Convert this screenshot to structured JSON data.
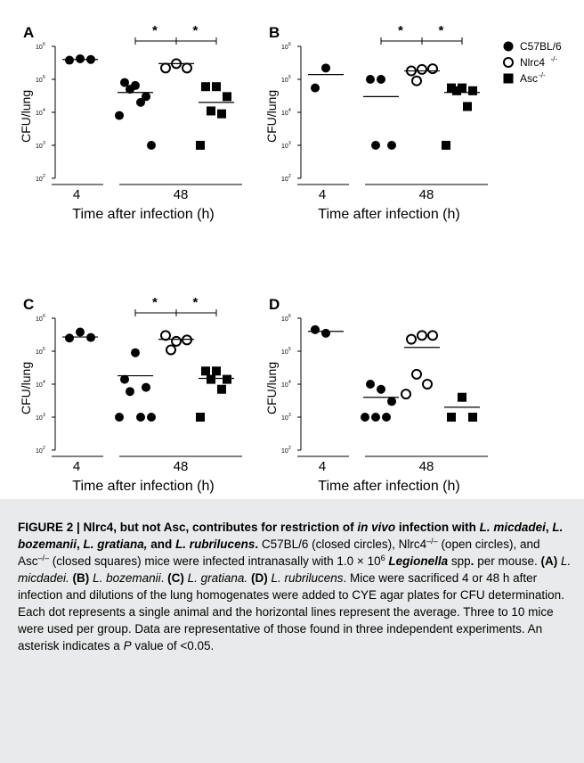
{
  "chart_data": [
    {
      "type": "scatter",
      "panel": "A",
      "ylabel": "CFU/lung",
      "xlabel": "Time after infection (h)",
      "yscale": "log",
      "ylim": [
        100,
        1000000
      ],
      "yticks": [
        "10",
        "10",
        "10",
        "10",
        "10"
      ],
      "yticks_exp": [
        "2",
        "3",
        "4",
        "5",
        "6"
      ],
      "time_groups": [
        {
          "label": "4",
          "series_indices": [
            0
          ]
        },
        {
          "label": "48",
          "series_indices": [
            1,
            2,
            3
          ]
        }
      ],
      "series": [
        {
          "name": "C57BL/6",
          "time": 4,
          "values": [
            420000,
            380000,
            400000
          ],
          "mean": 400000
        },
        {
          "name": "C57BL/6",
          "time": 48,
          "values": [
            65000,
            80000,
            30000,
            50000,
            20000,
            8000,
            1000
          ],
          "mean": 40000
        },
        {
          "name": "Nlrc4-/-",
          "time": 48,
          "values": [
            300000,
            220000,
            220000
          ],
          "mean": 300000
        },
        {
          "name": "Asc-/-",
          "time": 48,
          "values": [
            60000,
            60000,
            30000,
            11000,
            9000,
            1000
          ],
          "mean": 20000
        }
      ],
      "significance": [
        {
          "from": 1,
          "to": 2,
          "label": "*"
        },
        {
          "from": 2,
          "to": 3,
          "label": "*"
        }
      ]
    },
    {
      "type": "scatter",
      "panel": "B",
      "ylabel": "CFU/lung",
      "xlabel": "Time after infection (h)",
      "yscale": "log",
      "ylim": [
        100,
        1000000
      ],
      "yticks": [
        "10",
        "10",
        "10",
        "10",
        "10"
      ],
      "yticks_exp": [
        "2",
        "3",
        "4",
        "5",
        "6"
      ],
      "time_groups": [
        {
          "label": "4",
          "series_indices": [
            0
          ]
        },
        {
          "label": "48",
          "series_indices": [
            1,
            2,
            3
          ]
        }
      ],
      "series": [
        {
          "name": "C57BL/6",
          "time": 4,
          "values": [
            220000,
            55000
          ],
          "mean": 140000
        },
        {
          "name": "C57BL/6",
          "time": 48,
          "values": [
            100000,
            100000,
            1000,
            1000
          ],
          "mean": 30000
        },
        {
          "name": "Nlrc4-/-",
          "time": 48,
          "values": [
            200000,
            180000,
            210000,
            90000
          ],
          "mean": 180000
        },
        {
          "name": "Asc-/-",
          "time": 48,
          "values": [
            55000,
            55000,
            45000,
            45000,
            15000,
            1000
          ],
          "mean": 40000
        }
      ],
      "significance": [
        {
          "from": 1,
          "to": 2,
          "label": "*"
        },
        {
          "from": 2,
          "to": 3,
          "label": "*"
        }
      ]
    },
    {
      "type": "scatter",
      "panel": "C",
      "ylabel": "CFU/lung",
      "xlabel": "Time after infection (h)",
      "yscale": "log",
      "ylim": [
        100,
        1000000
      ],
      "yticks": [
        "10",
        "10",
        "10",
        "10",
        "10"
      ],
      "yticks_exp": [
        "2",
        "3",
        "4",
        "5",
        "6"
      ],
      "time_groups": [
        {
          "label": "4",
          "series_indices": [
            0
          ]
        },
        {
          "label": "48",
          "series_indices": [
            1,
            2,
            3
          ]
        }
      ],
      "series": [
        {
          "name": "C57BL/6",
          "time": 4,
          "values": [
            380000,
            250000,
            260000
          ],
          "mean": 270000
        },
        {
          "name": "C57BL/6",
          "time": 48,
          "values": [
            90000,
            14000,
            8000,
            6000,
            1000,
            1000,
            1000
          ],
          "mean": 18000
        },
        {
          "name": "Nlrc4-/-",
          "time": 48,
          "values": [
            200000,
            300000,
            220000,
            110000
          ],
          "mean": 230000
        },
        {
          "name": "Asc-/-",
          "time": 48,
          "values": [
            25000,
            25000,
            14000,
            14000,
            7000,
            1000
          ],
          "mean": 15000
        }
      ],
      "significance": [
        {
          "from": 1,
          "to": 2,
          "label": "*"
        },
        {
          "from": 2,
          "to": 3,
          "label": "*"
        }
      ]
    },
    {
      "type": "scatter",
      "panel": "D",
      "ylabel": "CFU/lung",
      "xlabel": "Time after infection (h)",
      "yscale": "log",
      "ylim": [
        100,
        1000000
      ],
      "yticks": [
        "10",
        "10",
        "10",
        "10",
        "10"
      ],
      "yticks_exp": [
        "2",
        "3",
        "4",
        "5",
        "6"
      ],
      "time_groups": [
        {
          "label": "4",
          "series_indices": [
            0
          ]
        },
        {
          "label": "48",
          "series_indices": [
            1,
            2,
            3
          ]
        }
      ],
      "series": [
        {
          "name": "C57BL/6",
          "time": 4,
          "values": [
            350000,
            450000
          ],
          "mean": 400000
        },
        {
          "name": "C57BL/6",
          "time": 48,
          "values": [
            7000,
            10000,
            3000,
            1000,
            1000,
            1000
          ],
          "mean": 4000
        },
        {
          "name": "Nlrc4-/-",
          "time": 48,
          "values": [
            300000,
            230000,
            300000,
            20000,
            10000,
            5000
          ],
          "mean": 130000
        },
        {
          "name": "Asc-/-",
          "time": 48,
          "values": [
            4000,
            1000,
            1000
          ],
          "mean": 2000
        }
      ],
      "significance": []
    }
  ],
  "legend": {
    "items": [
      {
        "label": "C57BL/6",
        "sup": "",
        "marker": "filled-circle"
      },
      {
        "label": "Nlrc4",
        "sup": "-/-",
        "marker": "open-circle"
      },
      {
        "label": "Asc",
        "sup": "-/-",
        "marker": "filled-square"
      }
    ]
  },
  "colors": {
    "marker": "#000000",
    "caption_bg": "#e9eaeb"
  },
  "caption": {
    "title_1": "FIGURE 2 | Nlrc4, but not Asc, contributes for restriction of ",
    "title_2": "in vivo",
    "title_3": " infection with ",
    "title_4": "L. micdadei",
    "title_5": ", ",
    "title_6": "L. bozemanii",
    "title_7": ", ",
    "title_8": "L. gratiana,",
    "title_9": " and ",
    "title_10": "L. rubrilucens",
    "title_11": ".",
    "b1": " C57BL/6 (closed circles), Nlrc4",
    "b2": "–/–",
    "b3": " (open circles), and Asc",
    "b4": "–/–",
    "b5": " (closed squares) mice were infected intranasally with 1.0 × 10",
    "b6": "6",
    "b7": " ",
    "b8": "Legionella",
    "b9": " spp",
    "b10": ".",
    "b11": " per mouse. ",
    "b12": "(A)",
    "b13": " ",
    "b14": "L. micdadei.",
    "b15": " ",
    "b16": "(B)",
    "b17": " ",
    "b18": "L. bozemanii",
    "b19": ". ",
    "b20": "(C)",
    "b21": " ",
    "b22": "L. gratiana.",
    "b23": " ",
    "b24": "(D)",
    "b25": " ",
    "b26": "L. rubrilucens",
    "b27": ". Mice were sacrificed 4 or 48 h after infection and dilutions of the lung homogenates were added to CYE agar plates for CFU determination. Each dot represents a single animal and the horizontal lines represent the average. Three to 10 mice were used per group. Data are representative of those found in three independent experiments. An asterisk indicates a ",
    "b28": "P",
    "b29": " value of <0.05."
  }
}
